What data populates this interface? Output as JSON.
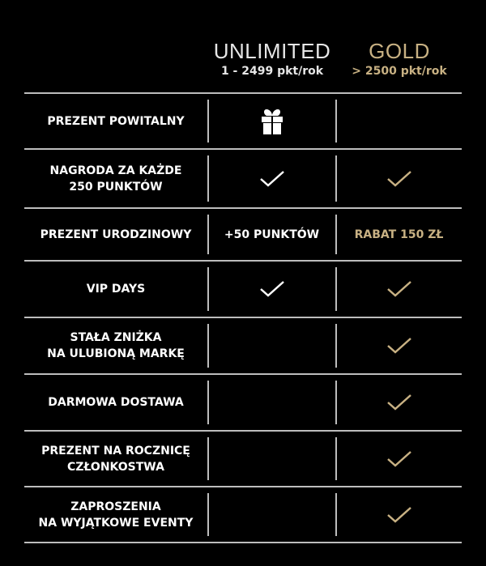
{
  "columns": [
    {
      "title": "UNLIMITED",
      "subtitle": "1 - 2499 pkt/rok"
    },
    {
      "title": "GOLD",
      "subtitle": "> 2500 pkt/rok"
    }
  ],
  "colors": {
    "gold": "#c8b183",
    "white": "#ffffff",
    "background": "#000000"
  },
  "rows": [
    {
      "label": "PREZENT POWITALNY",
      "unlimited": "gift-icon",
      "gold": ""
    },
    {
      "label": "NAGRODA ZA KAŻDE\n250 PUNKTÓW",
      "unlimited": "check-icon",
      "gold": "check-icon"
    },
    {
      "label": "PREZENT URODZINOWY",
      "unlimited": "+50 PUNKTÓW",
      "gold": "RABAT 150 ZŁ"
    },
    {
      "label": "VIP DAYS",
      "unlimited": "check-icon",
      "gold": "check-icon"
    },
    {
      "label": "STAŁA ZNIŻKA\nNA ULUBIONĄ MARKĘ",
      "unlimited": "",
      "gold": "check-icon"
    },
    {
      "label": "DARMOWA DOSTAWA",
      "unlimited": "",
      "gold": "check-icon"
    },
    {
      "label": "PREZENT NA ROCZNICĘ\nCZŁONKOSTWA",
      "unlimited": "",
      "gold": "check-icon"
    },
    {
      "label": "ZAPROSZENIA\nNA WYJĄTKOWE EVENTY",
      "unlimited": "",
      "gold": "check-icon"
    }
  ]
}
